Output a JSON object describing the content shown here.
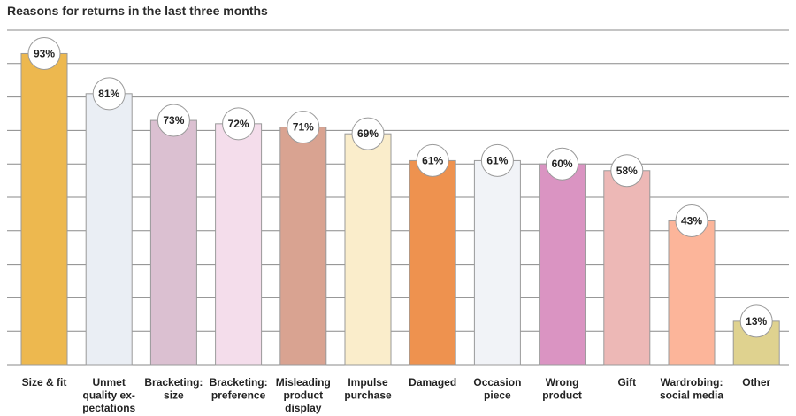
{
  "chart_data": {
    "type": "bar",
    "title": "Reasons for returns in the last three months",
    "xlabel": "",
    "ylabel": "",
    "ylim": [
      0,
      100
    ],
    "grid": true,
    "categories": [
      [
        "Size & fit"
      ],
      [
        "Unmet",
        "quality ex-",
        "pectations"
      ],
      [
        "Bracketing:",
        "size"
      ],
      [
        "Bracketing:",
        "preference"
      ],
      [
        "Misleading",
        "product",
        "display"
      ],
      [
        "Impulse",
        "purchase"
      ],
      [
        "Damaged"
      ],
      [
        "Occasion",
        "piece"
      ],
      [
        "Wrong",
        "product"
      ],
      [
        "Gift"
      ],
      [
        "Wardrobing:",
        "social media"
      ],
      [
        "Other"
      ]
    ],
    "values": [
      93,
      81,
      73,
      72,
      71,
      69,
      61,
      61,
      60,
      58,
      43,
      13
    ],
    "value_labels": [
      "93%",
      "81%",
      "73%",
      "72%",
      "71%",
      "69%",
      "61%",
      "61%",
      "60%",
      "58%",
      "43%",
      "13%"
    ],
    "colors": [
      "#EDB84F",
      "#EAEEF4",
      "#DBC0D1",
      "#F4DDEB",
      "#D9A391",
      "#FAEDCB",
      "#EE924F",
      "#F1F3F7",
      "#DA94C2",
      "#EDB8B6",
      "#FCB59A",
      "#DFD28F"
    ]
  }
}
